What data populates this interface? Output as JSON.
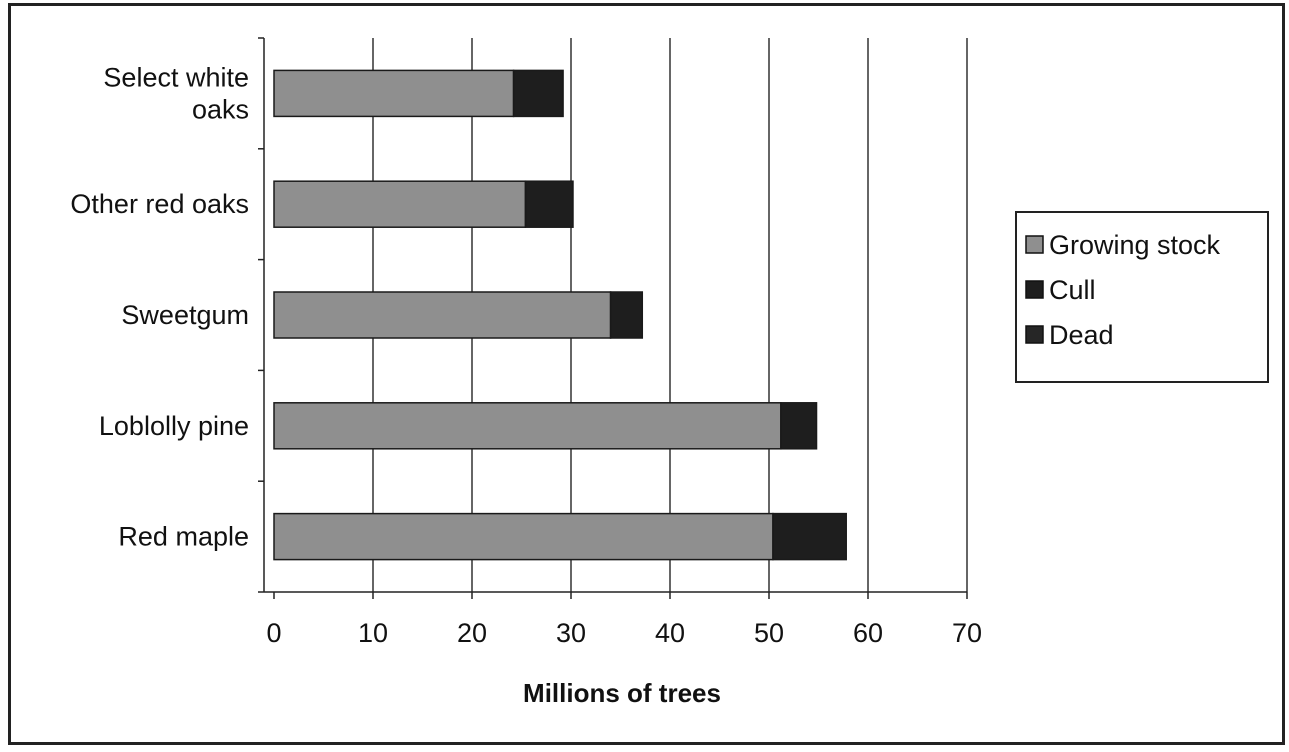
{
  "chart_data": {
    "type": "bar",
    "orientation": "horizontal",
    "stacked": true,
    "categories": [
      "Select white oaks",
      "Other red oaks",
      "Sweetgum",
      "Loblolly pine",
      "Red maple"
    ],
    "category_lines": [
      [
        "Select white",
        "oaks"
      ],
      [
        "Other red oaks"
      ],
      [
        "Sweetgum"
      ],
      [
        "Loblolly pine"
      ],
      [
        "Red maple"
      ]
    ],
    "series": [
      {
        "name": "Growing stock",
        "values": [
          24.2,
          25.4,
          34.0,
          51.2,
          50.4
        ],
        "color": "#8f8f8f"
      },
      {
        "name": "Cull",
        "values": [
          5.0,
          4.8,
          3.2,
          3.6,
          7.4
        ],
        "color": "#1e1e1e"
      },
      {
        "name": "Dead",
        "values": [
          0,
          0,
          0,
          0,
          0
        ],
        "color": "#262626"
      }
    ],
    "xlabel": "Millions of trees",
    "ylabel": "",
    "xlim": [
      0,
      70
    ],
    "xticks": [
      0,
      10,
      20,
      30,
      40,
      50,
      60,
      70
    ],
    "grid": true,
    "legend_position": "right"
  }
}
